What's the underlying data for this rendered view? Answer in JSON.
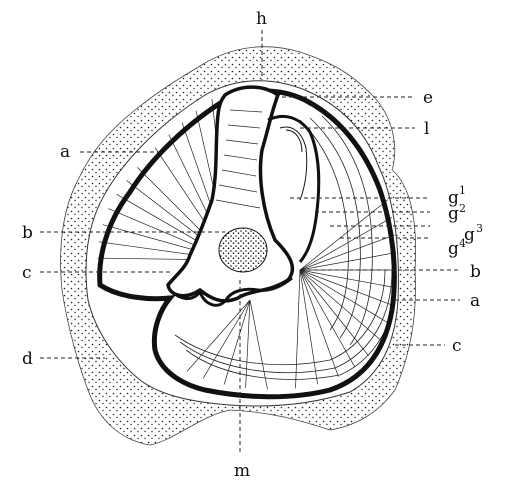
{
  "figure": {
    "labels": {
      "h": "h",
      "e": "e",
      "l": "l",
      "a_left": "a",
      "b_left": "b",
      "c_left": "c",
      "d_left": "d",
      "m": "m",
      "g1": "g",
      "g1_sup": "1",
      "g2": "g",
      "g2_sup": "2",
      "g3": "g",
      "g3_sup": "3",
      "g4": "g",
      "g4_sup": "4",
      "b_right": "b",
      "a_right": "a",
      "c_right": "c"
    }
  }
}
